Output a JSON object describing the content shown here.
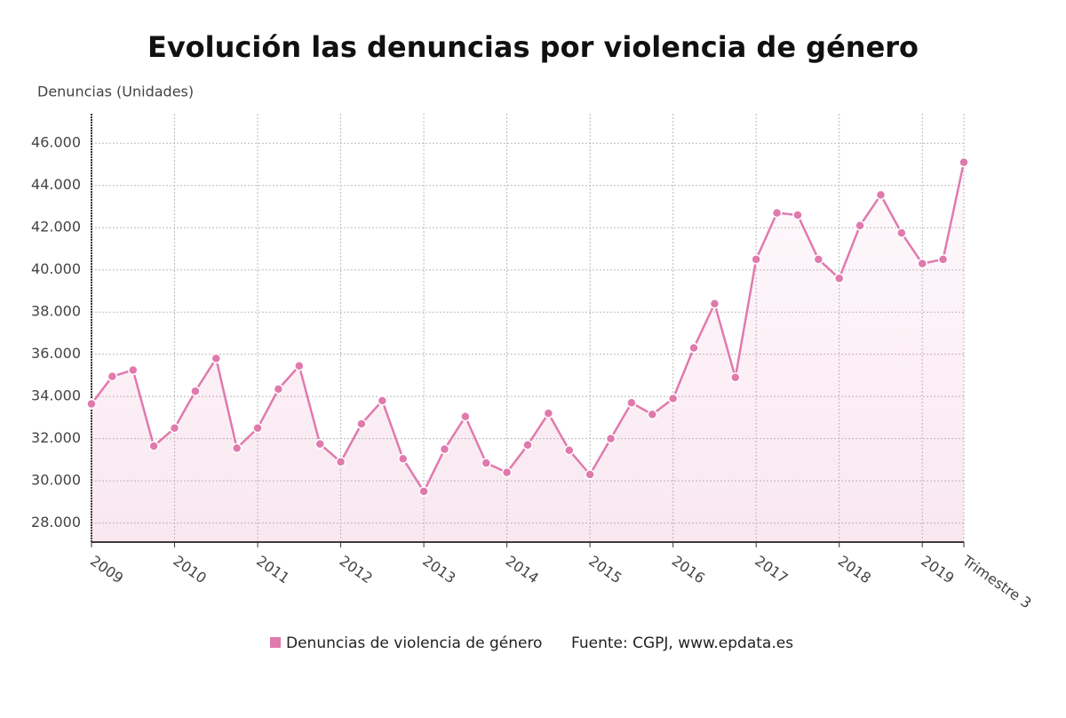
{
  "chart_data": {
    "type": "line",
    "title": "Evolución las denuncias por violencia de género",
    "y_label": "Denuncias (Unidades)",
    "source": "Fuente: CGPJ, www.epdata.es",
    "categories": [
      "2009",
      null,
      null,
      null,
      "2010",
      null,
      null,
      null,
      "2011",
      null,
      null,
      null,
      "2012",
      null,
      null,
      null,
      "2013",
      null,
      null,
      null,
      "2014",
      null,
      null,
      null,
      "2015",
      null,
      null,
      null,
      "2016",
      null,
      null,
      null,
      "2017",
      null,
      null,
      null,
      "2018",
      null,
      null,
      null,
      "2019",
      null,
      "Trimestre 3"
    ],
    "series": [
      {
        "name": "Denuncias de violencia de género",
        "color": "#e07aad",
        "values": [
          33650,
          34950,
          35250,
          31650,
          32500,
          34250,
          35800,
          31550,
          32500,
          34350,
          35450,
          31750,
          30900,
          32700,
          33800,
          31050,
          29500,
          31500,
          33050,
          30850,
          30400,
          31700,
          33200,
          31450,
          30300,
          32000,
          33700,
          33150,
          33900,
          36300,
          38400,
          34900,
          40500,
          42700,
          42600,
          40500,
          39600,
          42100,
          43550,
          41750,
          40300,
          40500,
          45100
        ]
      }
    ],
    "ylim": [
      27100,
      47400
    ],
    "yticks": [
      {
        "value": 28000,
        "label": "28.000"
      },
      {
        "value": 30000,
        "label": "30.000"
      },
      {
        "value": 32000,
        "label": "32.000"
      },
      {
        "value": 34000,
        "label": "34.000"
      },
      {
        "value": 36000,
        "label": "36.000"
      },
      {
        "value": 38000,
        "label": "38.000"
      },
      {
        "value": 40000,
        "label": "40.000"
      },
      {
        "value": 42000,
        "label": "42.000"
      },
      {
        "value": 44000,
        "label": "44.000"
      },
      {
        "value": 46000,
        "label": "46.000"
      }
    ],
    "grid": true
  }
}
